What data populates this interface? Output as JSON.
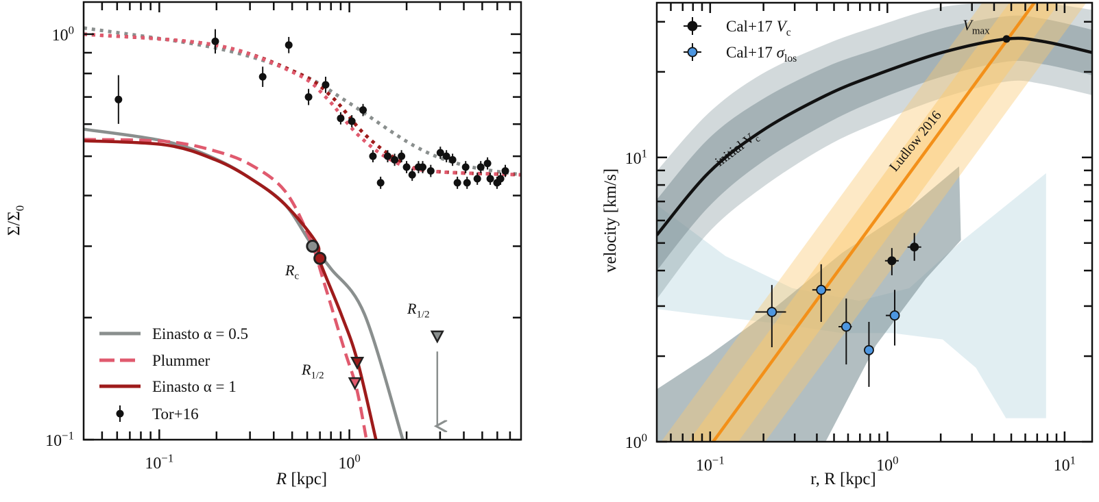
{
  "chart_data": [
    {
      "type": "line",
      "xlabel": {
        "sym": "R",
        "rest": " [kpc]"
      },
      "ylabel": {
        "text": "Σ/Σ",
        "sub": "0"
      },
      "xscale": "log",
      "yscale": "log",
      "xlim": [
        0.04,
        8
      ],
      "ylim": [
        0.1,
        1.2
      ],
      "xticks": [
        {
          "value": 0.1,
          "base": "10",
          "exp": "−1"
        },
        {
          "value": 1,
          "base": "10",
          "exp": "0"
        }
      ],
      "yticks": [
        {
          "value": 0.1,
          "base": "10",
          "exp": "−1"
        },
        {
          "value": 1,
          "base": "10",
          "exp": "0"
        }
      ],
      "grid": false,
      "legend_position": "bottom-left",
      "colors": {
        "grey": "#8a8f8e",
        "darkred": "#9e1b1b",
        "pink": "#e05a6e",
        "points": "#111111"
      },
      "series": [
        {
          "name": "Einasto α = 0.5",
          "style": "solid",
          "color": "#8a8f8e",
          "x": [
            0.04,
            0.108,
            0.197,
            0.306,
            0.459,
            0.63,
            0.8,
            1.2,
            1.91
          ],
          "y": [
            0.583,
            0.544,
            0.493,
            0.439,
            0.38,
            0.304,
            0.264,
            0.204,
            0.1
          ]
        },
        {
          "name": "Plummer",
          "style": "dashed",
          "color": "#e05a6e",
          "x": [
            0.04,
            0.108,
            0.197,
            0.306,
            0.459,
            0.62,
            0.73,
            0.94,
            1.09,
            1.23
          ],
          "y": [
            0.55,
            0.544,
            0.515,
            0.475,
            0.41,
            0.313,
            0.247,
            0.167,
            0.134,
            0.1
          ]
        },
        {
          "name": "Einasto α = 1",
          "style": "solid",
          "color": "#9e1b1b",
          "x": [
            0.04,
            0.108,
            0.197,
            0.306,
            0.459,
            0.67,
            0.7,
            0.905,
            1.1,
            1.38
          ],
          "y": [
            0.546,
            0.533,
            0.49,
            0.439,
            0.38,
            0.306,
            0.275,
            0.204,
            0.157,
            0.1
          ]
        },
        {
          "style": "dotted",
          "color": "#8a8f8e",
          "x": [
            0.04,
            0.197,
            0.54,
            0.98,
            2.2,
            4.0,
            8.0
          ],
          "y": [
            1.036,
            0.925,
            0.8,
            0.68,
            0.53,
            0.475,
            0.45
          ]
        },
        {
          "style": "dotted",
          "color": "#9e1b1b",
          "x": [
            0.04,
            0.197,
            0.54,
            0.81,
            1.2,
            1.8,
            2.68,
            8.0
          ],
          "y": [
            1.0,
            0.94,
            0.8,
            0.7,
            0.567,
            0.49,
            0.46,
            0.45
          ]
        },
        {
          "style": "dotted",
          "color": "#e05a6e",
          "x": [
            0.04,
            0.197,
            0.52,
            0.75,
            1.1,
            1.65,
            2.6,
            8.0
          ],
          "y": [
            1.0,
            0.94,
            0.8,
            0.7,
            0.567,
            0.49,
            0.46,
            0.45
          ]
        }
      ],
      "points": {
        "name": "Tor+16",
        "x": [
          0.061,
          0.197,
          0.35,
          0.48,
          0.61,
          0.75,
          0.9,
          1.03,
          1.18,
          1.33,
          1.46,
          1.59,
          1.73,
          1.88,
          2.0,
          2.14,
          2.31,
          2.43,
          2.68,
          3.01,
          3.24,
          3.49,
          3.7,
          4.09,
          4.16,
          4.71,
          4.91,
          5.33,
          5.51,
          5.98,
          6.24,
          6.61
        ],
        "y": [
          0.69,
          0.96,
          0.785,
          0.94,
          0.7,
          0.75,
          0.62,
          0.61,
          0.65,
          0.5,
          0.43,
          0.5,
          0.49,
          0.5,
          0.47,
          0.45,
          0.47,
          0.47,
          0.46,
          0.51,
          0.5,
          0.49,
          0.43,
          0.47,
          0.43,
          0.44,
          0.47,
          0.48,
          0.44,
          0.43,
          0.44,
          0.46
        ],
        "yerr_dex": [
          0.06,
          0.03,
          0.025,
          0.02,
          0.02,
          0.02,
          0.015,
          0.015,
          0.015,
          0.015,
          0.015,
          0.015,
          0.015,
          0.015,
          0.015,
          0.015,
          0.015,
          0.015,
          0.015,
          0.015,
          0.015,
          0.015,
          0.015,
          0.015,
          0.015,
          0.015,
          0.015,
          0.015,
          0.015,
          0.015,
          0.015,
          0.015
        ]
      },
      "markers": {
        "rc_grey": {
          "x": 0.64,
          "y": 0.3,
          "color": "#8a8f8e"
        },
        "rc_red": {
          "x": 0.7,
          "y": 0.28,
          "color": "#9e1b1b"
        },
        "rhalf_red": {
          "x": 1.1,
          "y": 0.155,
          "color": "#9e1b1b"
        },
        "rhalf_pink": {
          "x": 1.07,
          "y": 0.138,
          "color": "#e05a6e"
        },
        "rhalf_grey": {
          "x": 2.9,
          "y": 0.18,
          "color": "#8a8f8e"
        },
        "arrow_grey": {
          "x": 2.9,
          "y_from": 0.165,
          "y_to": 0.108
        }
      },
      "annotations": {
        "rc": {
          "sym": "R",
          "sub": "c"
        },
        "rhalf_left": {
          "sym": "R",
          "sub": "1/2"
        },
        "rhalf_right": {
          "sym": "R",
          "sub": "1/2"
        }
      },
      "legend": [
        "Einasto α = 0.5",
        "Plummer",
        "Einasto α = 1",
        "Tor+16"
      ]
    },
    {
      "type": "line",
      "xlabel": {
        "text": "r, R [kpc]"
      },
      "ylabel": {
        "text": "velocity [km/s]"
      },
      "xscale": "log",
      "yscale": "log",
      "xlim": [
        0.05,
        14.3
      ],
      "ylim": [
        1,
        35
      ],
      "xticks": [
        {
          "value": 0.1,
          "base": "10",
          "exp": "−1"
        },
        {
          "value": 1,
          "base": "10",
          "exp": "0"
        },
        {
          "value": 10,
          "base": "10",
          "exp": "1"
        }
      ],
      "yticks": [
        {
          "value": 1,
          "base": "10",
          "exp": "0"
        },
        {
          "value": 10,
          "base": "10",
          "exp": "1"
        }
      ],
      "grid": false,
      "legend_position": "top-left",
      "colors": {
        "vc_line": "#111111",
        "vc_band": "#7f9297",
        "ludlow": "#f39019",
        "ludlow_band": "#fbc970",
        "sigma_band": "#c9e0e8",
        "sigma_points": "#4d96e0",
        "vc_points": "#111111"
      },
      "initial_vc": {
        "x": [
          0.05,
          0.098,
          0.196,
          0.448,
          0.86,
          2.04,
          4.69,
          7.5,
          14.3
        ],
        "y": [
          5.33,
          8.83,
          12.4,
          16.5,
          19.5,
          23.4,
          26.1,
          25.6,
          23.4
        ],
        "band_inner_dex": [
          0.125,
          0.12,
          0.11,
          0.1,
          0.09,
          0.085,
          0.08,
          0.08,
          0.08
        ],
        "band_outer_dex": [
          0.225,
          0.21,
          0.2,
          0.18,
          0.17,
          0.16,
          0.15,
          0.15,
          0.15
        ]
      },
      "vmax": {
        "x": 4.7,
        "y": 26.1,
        "label": {
          "sym": "V",
          "sub": "max"
        }
      },
      "ludlow": {
        "x": [
          0.104,
          6.7
        ],
        "y": [
          1,
          34.8
        ],
        "band_inner_dex": 0.12,
        "band_outer_dex": 0.25,
        "label": "Ludlow 2016"
      },
      "initial_vc_label": {
        "text": "initial V",
        "sub": "c"
      },
      "grey_region": {
        "x": [
          0.05,
          0.098,
          0.233,
          0.556,
          1.33,
          2.54,
          2.6,
          1.65,
          0.86,
          0.448,
          0.05
        ],
        "y": [
          1.53,
          2.01,
          2.97,
          4.62,
          6.63,
          9.3,
          5.12,
          3.75,
          2.18,
          1.0,
          1.0
        ]
      },
      "sigma_region": {
        "x": [
          0.05,
          0.122,
          0.29,
          0.691,
          1.33,
          2.54,
          7.86,
          7.86,
          4.67,
          3.16,
          2.05,
          1.07,
          0.556,
          0.233,
          0.098,
          0.05
        ],
        "y": [
          6.81,
          4.5,
          3.47,
          3.13,
          3.47,
          4.99,
          8.8,
          1.21,
          1.21,
          1.82,
          2.29,
          2.41,
          2.41,
          2.61,
          2.78,
          2.93
        ]
      },
      "vc_points": {
        "name": "Cal+17 Vc",
        "x": [
          1.06,
          1.42
        ],
        "y": [
          4.33,
          4.84
        ],
        "ylo": [
          3.85,
          4.33
        ],
        "yhi": [
          4.8,
          5.42
        ]
      },
      "sigma_points": {
        "name": "Cal+17 σlos",
        "x": [
          0.223,
          0.423,
          0.586,
          0.787,
          1.1
        ],
        "y": [
          2.86,
          3.42,
          2.54,
          2.1,
          2.78
        ],
        "xlo": [
          0.18,
          0.377,
          0.53,
          0.74,
          0.98
        ],
        "xhi": [
          0.268,
          0.479,
          0.63,
          0.83,
          1.17
        ],
        "ylo": [
          2.15,
          2.64,
          1.87,
          1.56,
          2.18
        ],
        "yhi": [
          3.56,
          4.21,
          3.19,
          2.64,
          3.42
        ]
      },
      "legend": [
        {
          "text": "Cal+17 ",
          "sym": "V",
          "sub": "c"
        },
        {
          "text": "Cal+17 ",
          "sym": "σ",
          "sub": "los"
        }
      ]
    }
  ]
}
